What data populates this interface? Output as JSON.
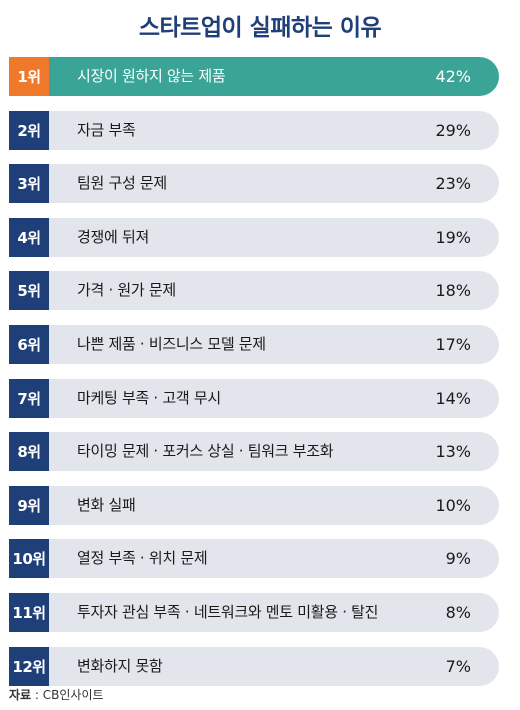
{
  "chart_data": {
    "type": "bar",
    "title": "스타트업이 실패하는 이유",
    "unit": "%",
    "categories": [
      "시장이 원하지 않는 제품",
      "자금 부족",
      "팀원 구성 문제",
      "경쟁에 뒤져",
      "가격 · 원가 문제",
      "나쁜 제품 · 비즈니스 모델 문제",
      "마케팅 부족 · 고객 무시",
      "타이밍 문제 · 포커스 상실 · 팀워크 부조화",
      "변화 실패",
      "열정 부족 · 위치 문제",
      "투자자 관심 부족 · 네트워크와 멘토 미활용 · 탈진",
      "변화하지 못함"
    ],
    "ranks": [
      "1위",
      "2위",
      "3위",
      "4위",
      "5위",
      "6위",
      "7위",
      "8위",
      "9위",
      "10위",
      "11위",
      "12위"
    ],
    "values": [
      42,
      29,
      23,
      19,
      18,
      17,
      14,
      13,
      10,
      9,
      8,
      7
    ],
    "value_labels": [
      "42%",
      "29%",
      "23%",
      "19%",
      "18%",
      "17%",
      "14%",
      "13%",
      "10%",
      "9%",
      "8%",
      "7%"
    ],
    "highlight_color": "#3aa596",
    "rank_highlight_color": "#f0782a",
    "rank_color": "#1f3f78",
    "row_color": "#e3e5ec"
  },
  "source": {
    "label": "자료",
    "separator": " : ",
    "text": "CB인사이트"
  }
}
